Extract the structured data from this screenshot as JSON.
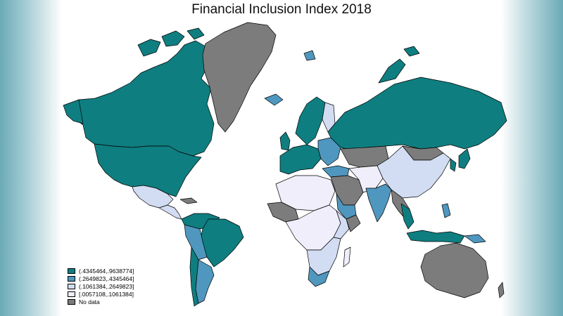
{
  "title": "Financial Inclusion Index 2018",
  "colors": {
    "highest": "#0f7e80",
    "upper": "#4f97bf",
    "lower": "#d2dcf2",
    "lowest": "#efeefa",
    "nodata": "#7c7c7c",
    "border": "#000000"
  },
  "legend": [
    {
      "label": "(.4345464,.9638774]",
      "color": "#0f7e80"
    },
    {
      "label": "(.2649823,.4345464]",
      "color": "#4f97bf"
    },
    {
      "label": "(.1061384,.2649823]",
      "color": "#d2dcf2"
    },
    {
      "label": "[.0057108,.1061384]",
      "color": "#efeefa"
    },
    {
      "label": "No data",
      "color": "#7c7c7c"
    }
  ]
}
